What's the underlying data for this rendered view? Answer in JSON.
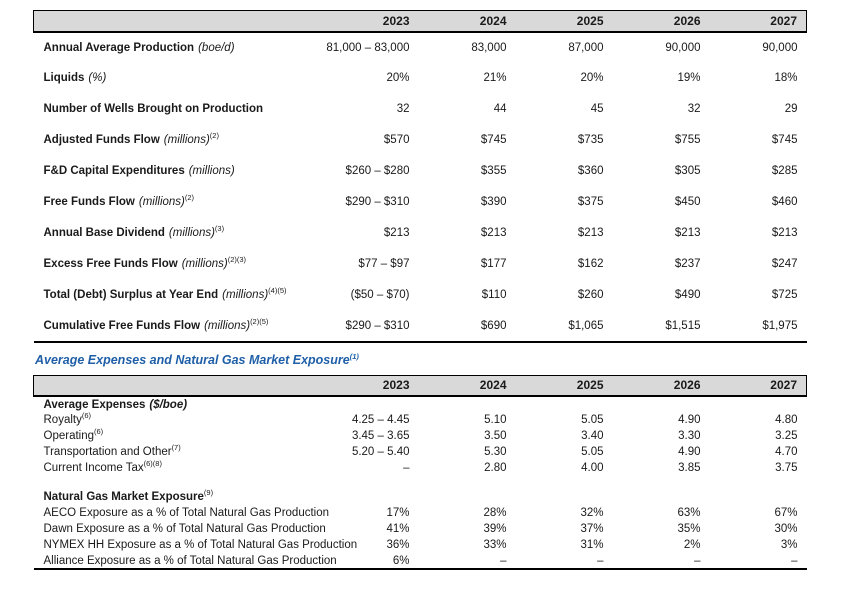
{
  "page": {
    "background": "#ffffff",
    "accent_blue": "#1f5fa8",
    "header_bg": "#d9d9d9"
  },
  "years": [
    "2023",
    "2024",
    "2025",
    "2026",
    "2027"
  ],
  "section_heading": {
    "text": "Average Expenses and Natural Gas Market Exposure",
    "sup": "(1)"
  },
  "production_table": {
    "rows": [
      {
        "label": "Annual Average Production",
        "note": "(boe/d)",
        "sup": "",
        "values": [
          "81,000 – 83,000",
          "83,000",
          "87,000",
          "90,000",
          "90,000"
        ]
      },
      {
        "label": "Liquids",
        "note": "(%)",
        "sup": "",
        "values": [
          "20%",
          "21%",
          "20%",
          "19%",
          "18%"
        ]
      },
      {
        "label": "Number of Wells Brought on Production",
        "note": "",
        "sup": "",
        "values": [
          "32",
          "44",
          "45",
          "32",
          "29"
        ]
      },
      {
        "label": "Adjusted Funds Flow",
        "note": "(millions)",
        "sup": "(2)",
        "values": [
          "$570",
          "$745",
          "$735",
          "$755",
          "$745"
        ]
      },
      {
        "label": "F&D Capital Expenditures",
        "note": "(millions)",
        "sup": "",
        "values": [
          "$260 – $280",
          "$355",
          "$360",
          "$305",
          "$285"
        ]
      },
      {
        "label": "Free Funds Flow",
        "note": "(millions)",
        "sup": "(2)",
        "values": [
          "$290 – $310",
          "$390",
          "$375",
          "$450",
          "$460"
        ]
      },
      {
        "label": "Annual Base Dividend",
        "note": "(millions)",
        "sup": "(3)",
        "values": [
          "$213",
          "$213",
          "$213",
          "$213",
          "$213"
        ]
      },
      {
        "label": "Excess Free Funds Flow",
        "note": "(millions)",
        "sup": "(2)(3)",
        "values": [
          "$77 – $97",
          "$177",
          "$162",
          "$237",
          "$247"
        ]
      },
      {
        "label": "Total (Debt) Surplus at Year End",
        "note": "(millions)",
        "sup": "(4)(5)",
        "values": [
          "($50 – $70)",
          "$110",
          "$260",
          "$490",
          "$725"
        ]
      },
      {
        "label": "Cumulative Free Funds Flow",
        "note": "(millions)",
        "sup": "(2)(5)",
        "values": [
          "$290 – $310",
          "$690",
          "$1,065",
          "$1,515",
          "$1,975"
        ]
      }
    ]
  },
  "expenses_table": {
    "sections": [
      {
        "header": "Average Expenses",
        "header_note": "($/boe)",
        "header_sup": "",
        "rows": [
          {
            "label": "Royalty",
            "sup": "(6)",
            "values": [
              "4.25 – 4.45",
              "5.10",
              "5.05",
              "4.90",
              "4.80"
            ]
          },
          {
            "label": "Operating",
            "sup": "(6)",
            "values": [
              "3.45 – 3.65",
              "3.50",
              "3.40",
              "3.30",
              "3.25"
            ]
          },
          {
            "label": "Transportation and Other",
            "sup": "(7)",
            "values": [
              "5.20 – 5.40",
              "5.30",
              "5.05",
              "4.90",
              "4.70"
            ]
          },
          {
            "label": "Current Income Tax",
            "sup": "(6)(8)",
            "values": [
              "–",
              "2.80",
              "4.00",
              "3.85",
              "3.75"
            ]
          }
        ]
      },
      {
        "header": "Natural Gas Market Exposure",
        "header_note": "",
        "header_sup": "(9)",
        "rows": [
          {
            "label": "AECO Exposure as a % of Total Natural Gas Production",
            "sup": "",
            "values": [
              "17%",
              "28%",
              "32%",
              "63%",
              "67%"
            ]
          },
          {
            "label": "Dawn Exposure as a % of Total Natural Gas Production",
            "sup": "",
            "values": [
              "41%",
              "39%",
              "37%",
              "35%",
              "30%"
            ]
          },
          {
            "label": "NYMEX HH Exposure as a % of Total Natural Gas Production",
            "sup": "",
            "values": [
              "36%",
              "33%",
              "31%",
              "2%",
              "3%"
            ]
          },
          {
            "label": "Alliance Exposure as a % of Total Natural Gas Production",
            "sup": "",
            "values": [
              "6%",
              "–",
              "–",
              "–",
              "–"
            ]
          }
        ]
      }
    ]
  }
}
